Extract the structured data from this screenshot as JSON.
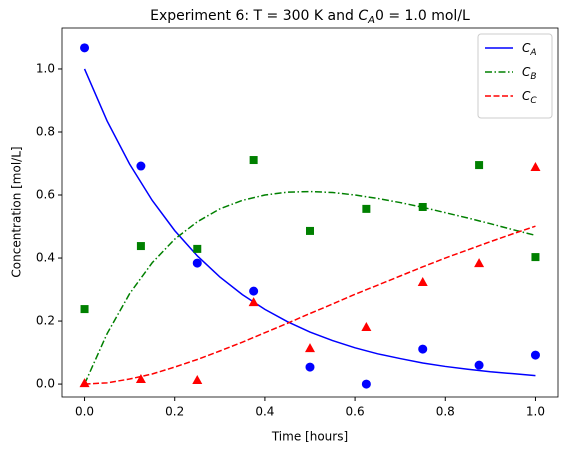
{
  "chart_data": {
    "type": "line",
    "title": {
      "before": "Experiment 6: T = 300 K and ",
      "symbol": "C",
      "subscript": "A",
      "after": "0 = 1.0 mol/L"
    },
    "x_label": "Time [hours]",
    "y_label": "Concentration [mol/L]",
    "xlim": [
      -0.05,
      1.05
    ],
    "ylim": [
      -0.041,
      1.13
    ],
    "xticks": [
      {
        "value": 0,
        "label": "0.0"
      },
      {
        "value": 0.2,
        "label": "0.2"
      },
      {
        "value": 0.4,
        "label": "0.4"
      },
      {
        "value": 0.6,
        "label": "0.6"
      },
      {
        "value": 0.8,
        "label": "0.8"
      },
      {
        "value": 1,
        "label": "1.0"
      }
    ],
    "yticks": [
      {
        "value": 0,
        "label": "0.0"
      },
      {
        "value": 0.2,
        "label": "0.2"
      },
      {
        "value": 0.4,
        "label": "0.4"
      },
      {
        "value": 0.6,
        "label": "0.6"
      },
      {
        "value": 0.8,
        "label": "0.8"
      },
      {
        "value": 1,
        "label": "1.0"
      }
    ],
    "legend": "upper right",
    "series": [
      {
        "name": "C",
        "subscript": "A",
        "color": "#0000ff",
        "linestyle": "solid",
        "x": [
          0,
          0.05,
          0.1,
          0.15,
          0.2,
          0.25,
          0.3,
          0.35,
          0.4,
          0.45,
          0.5,
          0.55,
          0.6,
          0.65,
          0.7,
          0.75,
          0.8,
          0.85,
          0.9,
          0.95,
          1
        ],
        "values": [
          1,
          0.835,
          0.698,
          0.583,
          0.487,
          0.407,
          0.34,
          0.284,
          0.237,
          0.198,
          0.165,
          0.138,
          0.115,
          0.096,
          0.081,
          0.067,
          0.056,
          0.047,
          0.039,
          0.033,
          0.027
        ]
      },
      {
        "name": "C",
        "subscript": "B",
        "color": "#008000",
        "linestyle": "dashdot",
        "x": [
          0,
          0.05,
          0.1,
          0.15,
          0.2,
          0.25,
          0.3,
          0.35,
          0.4,
          0.45,
          0.5,
          0.55,
          0.6,
          0.65,
          0.7,
          0.75,
          0.8,
          0.85,
          0.9,
          0.95,
          1
        ],
        "values": [
          0,
          0.16,
          0.287,
          0.385,
          0.46,
          0.515,
          0.556,
          0.583,
          0.6,
          0.609,
          0.611,
          0.608,
          0.6,
          0.589,
          0.576,
          0.561,
          0.544,
          0.527,
          0.509,
          0.49,
          0.472
        ]
      },
      {
        "name": "C",
        "subscript": "C",
        "color": "#ff0000",
        "linestyle": "dashed",
        "x": [
          0,
          0.05,
          0.1,
          0.15,
          0.2,
          0.25,
          0.3,
          0.35,
          0.4,
          0.45,
          0.5,
          0.55,
          0.6,
          0.65,
          0.7,
          0.75,
          0.8,
          0.85,
          0.9,
          0.95,
          1
        ],
        "values": [
          0,
          0.004,
          0.016,
          0.032,
          0.054,
          0.078,
          0.105,
          0.133,
          0.163,
          0.193,
          0.224,
          0.254,
          0.285,
          0.314,
          0.343,
          0.372,
          0.4,
          0.426,
          0.452,
          0.477,
          0.501
        ]
      }
    ],
    "points": [
      {
        "marker": "circle",
        "color": "#0000ff",
        "x": [
          0,
          0.125,
          0.25,
          0.375,
          0.5,
          0.625,
          0.75,
          0.875,
          1
        ],
        "values": [
          1.067,
          0.692,
          0.384,
          0.295,
          0.054,
          0.0,
          0.111,
          0.06,
          0.092
        ]
      },
      {
        "marker": "square",
        "color": "#008000",
        "x": [
          0,
          0.125,
          0.25,
          0.375,
          0.5,
          0.625,
          0.75,
          0.875,
          1
        ],
        "values": [
          0.238,
          0.438,
          0.429,
          0.711,
          0.486,
          0.556,
          0.562,
          0.695,
          0.403
        ]
      },
      {
        "marker": "triangle",
        "color": "#ff0000",
        "x": [
          0,
          0.125,
          0.25,
          0.375,
          0.5,
          0.625,
          0.75,
          0.875,
          1
        ],
        "values": [
          0.003,
          0.016,
          0.013,
          0.26,
          0.114,
          0.181,
          0.324,
          0.384,
          0.689
        ]
      }
    ]
  }
}
